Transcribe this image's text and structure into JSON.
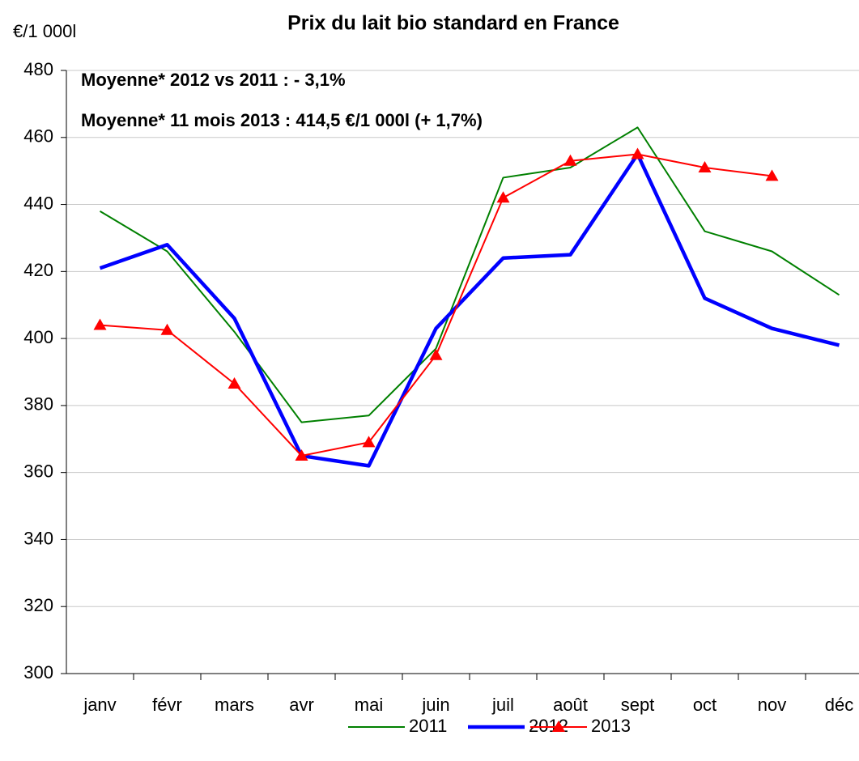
{
  "chart_data": {
    "type": "line",
    "title": "Prix du lait bio standard en France",
    "y_label": "€/1 000l",
    "annotations": [
      {
        "text": "Moyenne* 2012 vs 2011 :  - 3,1%",
        "color": "#0000ff"
      },
      {
        "text": "Moyenne* 11 mois 2013 : 414,5 €/1 000l (+ 1,7%)",
        "color": "#ff0000"
      }
    ],
    "categories": [
      "janv",
      "févr",
      "mars",
      "avr",
      "mai",
      "juin",
      "juil",
      "août",
      "sept",
      "oct",
      "nov",
      "déc"
    ],
    "series": [
      {
        "name": "2011",
        "color": "#008000",
        "width": 2,
        "marker": "none",
        "values": [
          438,
          426,
          402,
          375,
          377,
          397,
          448,
          451,
          463,
          432,
          426,
          413
        ]
      },
      {
        "name": "2012",
        "color": "#0000ff",
        "width": 4.5,
        "marker": "none",
        "values": [
          421,
          428,
          406,
          365,
          362,
          403,
          424,
          425,
          455,
          412,
          403,
          398
        ]
      },
      {
        "name": "2013",
        "color": "#ff0000",
        "width": 2,
        "marker": "triangle",
        "values": [
          404,
          402.5,
          386.5,
          365,
          369,
          395,
          442,
          453,
          455,
          451,
          448.5,
          null
        ]
      }
    ],
    "ylim": [
      300,
      480
    ],
    "yticks": [
      300,
      320,
      340,
      360,
      380,
      400,
      420,
      440,
      460,
      480
    ],
    "grid": true,
    "legend": "bottom"
  }
}
